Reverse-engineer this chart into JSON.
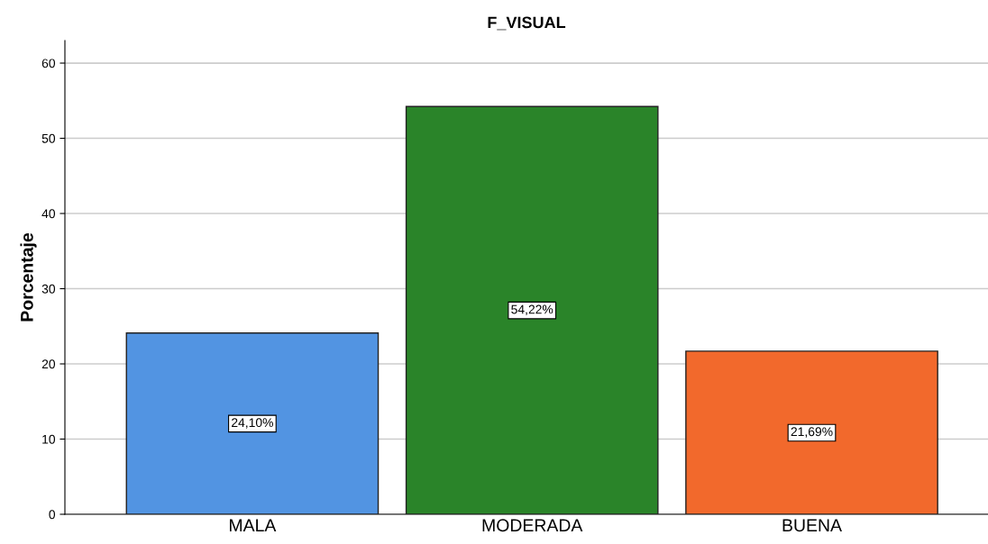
{
  "chart_data": {
    "type": "bar",
    "title": "F_VISUAL",
    "ylabel": "Porcentaje",
    "categories": [
      "MALA",
      "MODERADA",
      "BUENA"
    ],
    "values": [
      24.1,
      54.22,
      21.69
    ],
    "colors": [
      "#5294e2",
      "#2a8429",
      "#f2692c"
    ],
    "value_labels": [
      "24,10%",
      "54,22%",
      "21,69%"
    ],
    "ylim": [
      0,
      63
    ],
    "yticks": [
      0,
      10,
      20,
      30,
      40,
      50,
      60
    ],
    "grid": "y",
    "legend": false
  }
}
